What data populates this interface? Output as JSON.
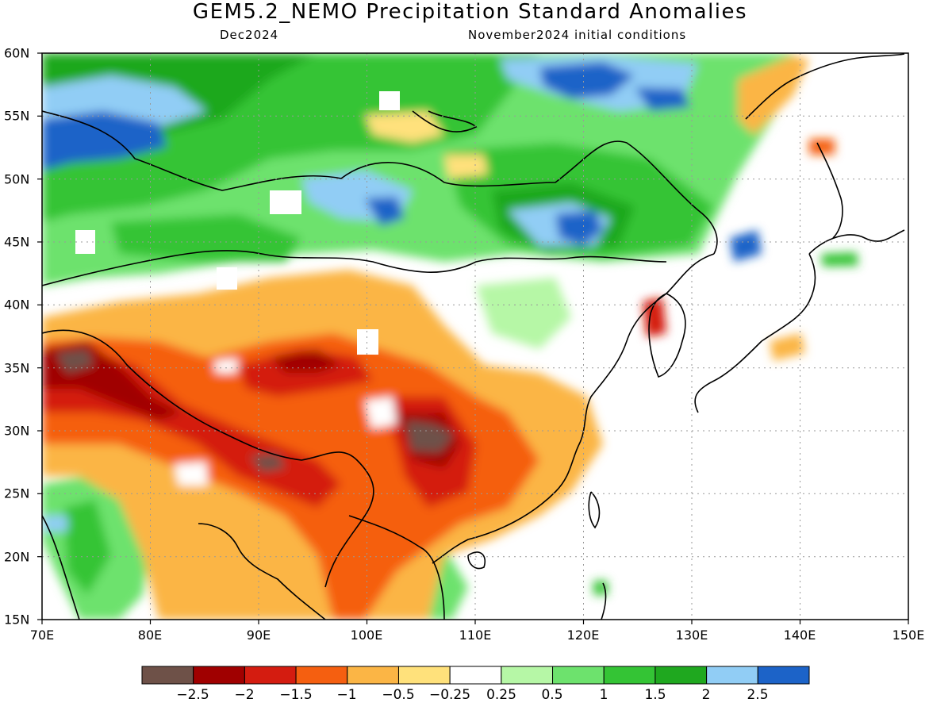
{
  "title": "GEM5.2_NEMO Precipitation Standard Anomalies",
  "subtitle_left": "Dec2024",
  "subtitle_right": "November2024 initial conditions",
  "map": {
    "lon_range": [
      70,
      150
    ],
    "lat_range": [
      15,
      60
    ],
    "lon_ticks": [
      "70E",
      "80E",
      "90E",
      "100E",
      "110E",
      "120E",
      "130E",
      "140E",
      "150E"
    ],
    "lat_ticks": [
      "60N",
      "55N",
      "50N",
      "45N",
      "40N",
      "35N",
      "30N",
      "25N",
      "20N",
      "15N"
    ],
    "grid": "dotted"
  },
  "colorbar": {
    "colors": [
      "#6e5148",
      "#a00000",
      "#d41c10",
      "#f55f10",
      "#fbb545",
      "#ffe17b",
      "#ffffff",
      "#b6f7a6",
      "#6de26d",
      "#34c435",
      "#1fa81f",
      "#91cdf5",
      "#1c63c8"
    ],
    "labels": [
      "−2.5",
      "−2",
      "−1.5",
      "−1",
      "−0.5",
      "−0.25",
      "0.25",
      "0.5",
      "1",
      "1.5",
      "2",
      "2.5"
    ]
  }
}
